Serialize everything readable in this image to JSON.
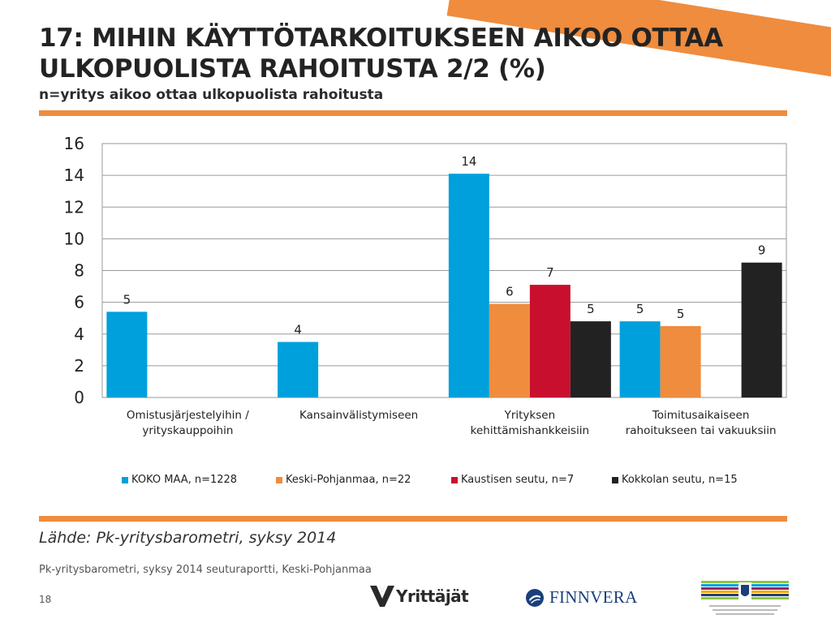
{
  "header": {
    "title": "17: MIHIN KÄYTTÖTARKOITUKSEEN AIKOO OTTAA ULKOPUOLISTA RAHOITUSTA 2/2 (%)",
    "subtitle": "n=yritys aikoo ottaa ulkopuolista rahoitusta"
  },
  "colors": {
    "accent": "#ef8c3e",
    "koko_maa": "#00a0dc",
    "keski_pohjanmaa": "#ef8c3e",
    "kaustisen_seutu": "#c8102e",
    "kokkolan_seutu": "#222222"
  },
  "chart_data": {
    "type": "bar",
    "categories": [
      [
        "Omistusjärjestelyihin /",
        "yrityskauppoihin"
      ],
      [
        "Kansainvälistymiseen"
      ],
      [
        "Yrityksen",
        "kehittämishankkeisiin"
      ],
      [
        "Toimitusaikaiseen",
        "rahoitukseen tai vakuuksiin"
      ]
    ],
    "series": [
      {
        "name": "KOKO MAA, n=1228",
        "color": "#00a0dc",
        "values": [
          5.4,
          3.5,
          14.1,
          4.8
        ],
        "labels": [
          "5",
          "4",
          "14",
          "5"
        ]
      },
      {
        "name": "Keski-Pohjanmaa, n=22",
        "color": "#ef8c3e",
        "values": [
          null,
          null,
          5.9,
          4.5
        ],
        "labels": [
          "",
          "",
          "6",
          "5"
        ]
      },
      {
        "name": "Kaustisen seutu, n=7",
        "color": "#c8102e",
        "values": [
          null,
          null,
          7.1,
          null
        ],
        "labels": [
          "",
          "",
          "7",
          ""
        ]
      },
      {
        "name": "Kokkolan seutu, n=15",
        "color": "#222222",
        "values": [
          null,
          null,
          4.8,
          8.5
        ],
        "labels": [
          "",
          "",
          "5",
          "9"
        ]
      }
    ],
    "ylim": [
      0,
      16
    ],
    "yticks": [
      "0",
      "2",
      "4",
      "6",
      "8",
      "10",
      "12",
      "14",
      "16"
    ],
    "grid": true,
    "legend": "bottom"
  },
  "footer": {
    "source": "Lähde: Pk-yritysbarometri, syksy 2014",
    "report": "Pk-yritysbarometri, syksy 2014 seuturaportti, Keski-Pohjanmaa",
    "page": "18"
  },
  "logos": {
    "yrittajat": "Yrittäjät",
    "finnvera": "FINNVERA"
  }
}
